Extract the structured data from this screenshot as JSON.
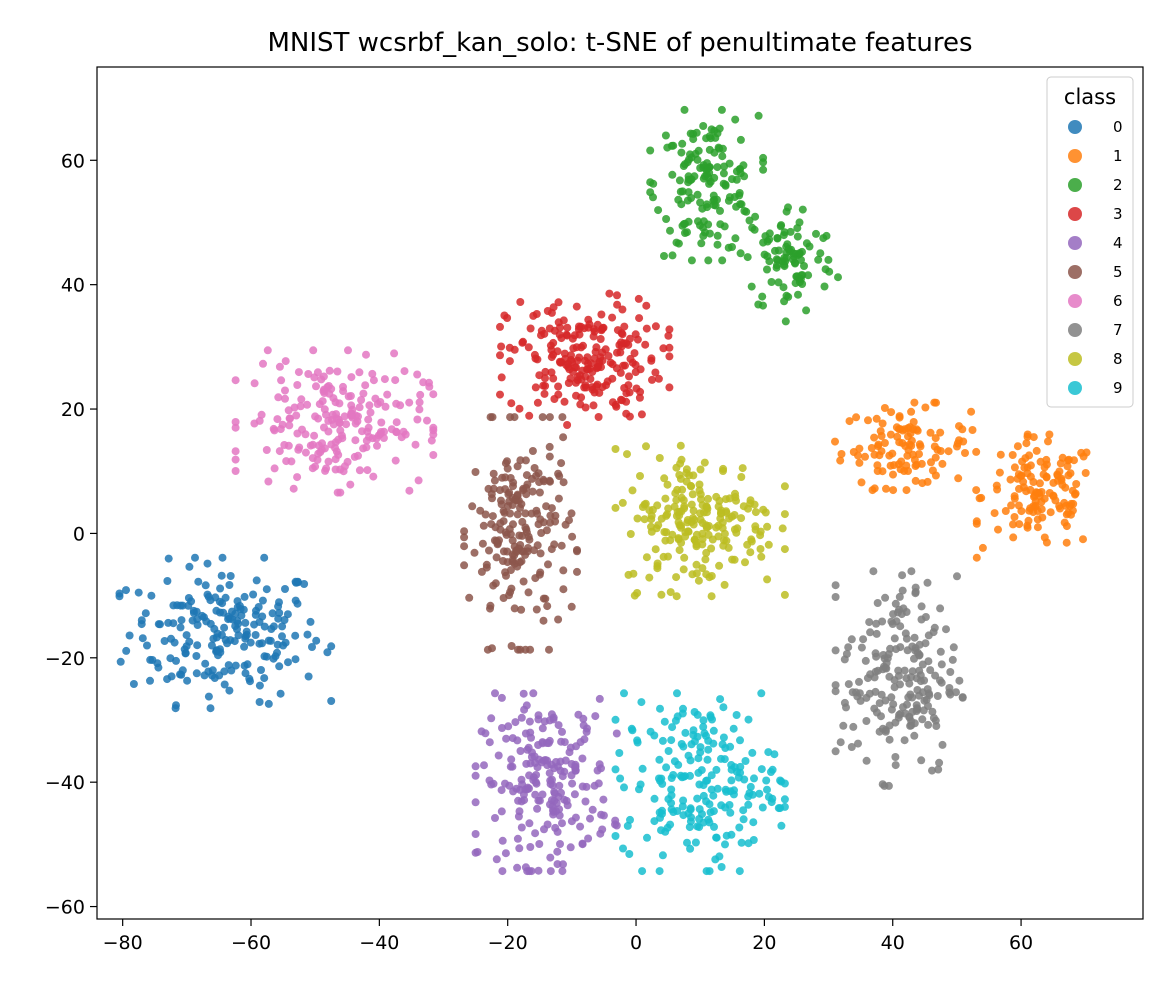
{
  "chart_data": {
    "type": "scatter",
    "title": "MNIST wcsrbf_kan_solo: t-SNE of penultimate features",
    "xlabel": "",
    "ylabel": "",
    "xlim": [
      -84,
      79
    ],
    "ylim": [
      -62,
      75
    ],
    "x_ticks": [
      -80,
      -60,
      -40,
      -20,
      0,
      20,
      40,
      60
    ],
    "x_tick_labels": [
      "−80",
      "−60",
      "−40",
      "−20",
      "0",
      "20",
      "40",
      "60"
    ],
    "y_ticks": [
      -60,
      -40,
      -20,
      0,
      20,
      40,
      60
    ],
    "y_tick_labels": [
      "−60",
      "−40",
      "−20",
      "0",
      "20",
      "40",
      "60"
    ],
    "grid": false,
    "legend": {
      "title": "class",
      "placement": "top-right",
      "entries": [
        "0",
        "1",
        "2",
        "3",
        "4",
        "5",
        "6",
        "7",
        "8",
        "9"
      ]
    },
    "series": [
      {
        "name": "0",
        "color": "#1f77b4",
        "clusters": [
          {
            "cx": -64,
            "cy": -16,
            "sx": 7.5,
            "sy": 5.5,
            "n": 210
          }
        ]
      },
      {
        "name": "1",
        "color": "#ff7f0e",
        "clusters": [
          {
            "cx": 42,
            "cy": 14,
            "sx": 5,
            "sy": 3.2,
            "n": 110
          },
          {
            "cx": 63,
            "cy": 6,
            "sx": 4.5,
            "sy": 4.5,
            "n": 130
          }
        ]
      },
      {
        "name": "2",
        "color": "#2ca02c",
        "clusters": [
          {
            "cx": 11,
            "cy": 56,
            "sx": 4,
            "sy": 5.5,
            "n": 150
          },
          {
            "cx": 24,
            "cy": 44,
            "sx": 3.5,
            "sy": 4.5,
            "n": 90
          }
        ]
      },
      {
        "name": "3",
        "color": "#d62728",
        "clusters": [
          {
            "cx": -8,
            "cy": 28,
            "sx": 6,
            "sy": 4.8,
            "n": 220
          }
        ]
      },
      {
        "name": "4",
        "color": "#9467bd",
        "clusters": [
          {
            "cx": -14,
            "cy": -40,
            "sx": 5,
            "sy": 6.5,
            "n": 210
          }
        ]
      },
      {
        "name": "5",
        "color": "#8c564b",
        "clusters": [
          {
            "cx": -18,
            "cy": 0,
            "sx": 4,
            "sy": 8.5,
            "n": 200
          }
        ]
      },
      {
        "name": "6",
        "color": "#e377c2",
        "clusters": [
          {
            "cx": -47,
            "cy": 18,
            "sx": 7,
            "sy": 5.2,
            "n": 210
          }
        ]
      },
      {
        "name": "7",
        "color": "#7f7f7f",
        "clusters": [
          {
            "cx": 41,
            "cy": -23,
            "sx": 4.5,
            "sy": 8,
            "n": 200
          }
        ]
      },
      {
        "name": "8",
        "color": "#bcbd22",
        "clusters": [
          {
            "cx": 10,
            "cy": 2,
            "sx": 6,
            "sy": 5.5,
            "n": 210
          }
        ]
      },
      {
        "name": "9",
        "color": "#17becf",
        "clusters": [
          {
            "cx": 10,
            "cy": -40,
            "sx": 6,
            "sy": 6.5,
            "n": 210
          }
        ]
      }
    ]
  }
}
